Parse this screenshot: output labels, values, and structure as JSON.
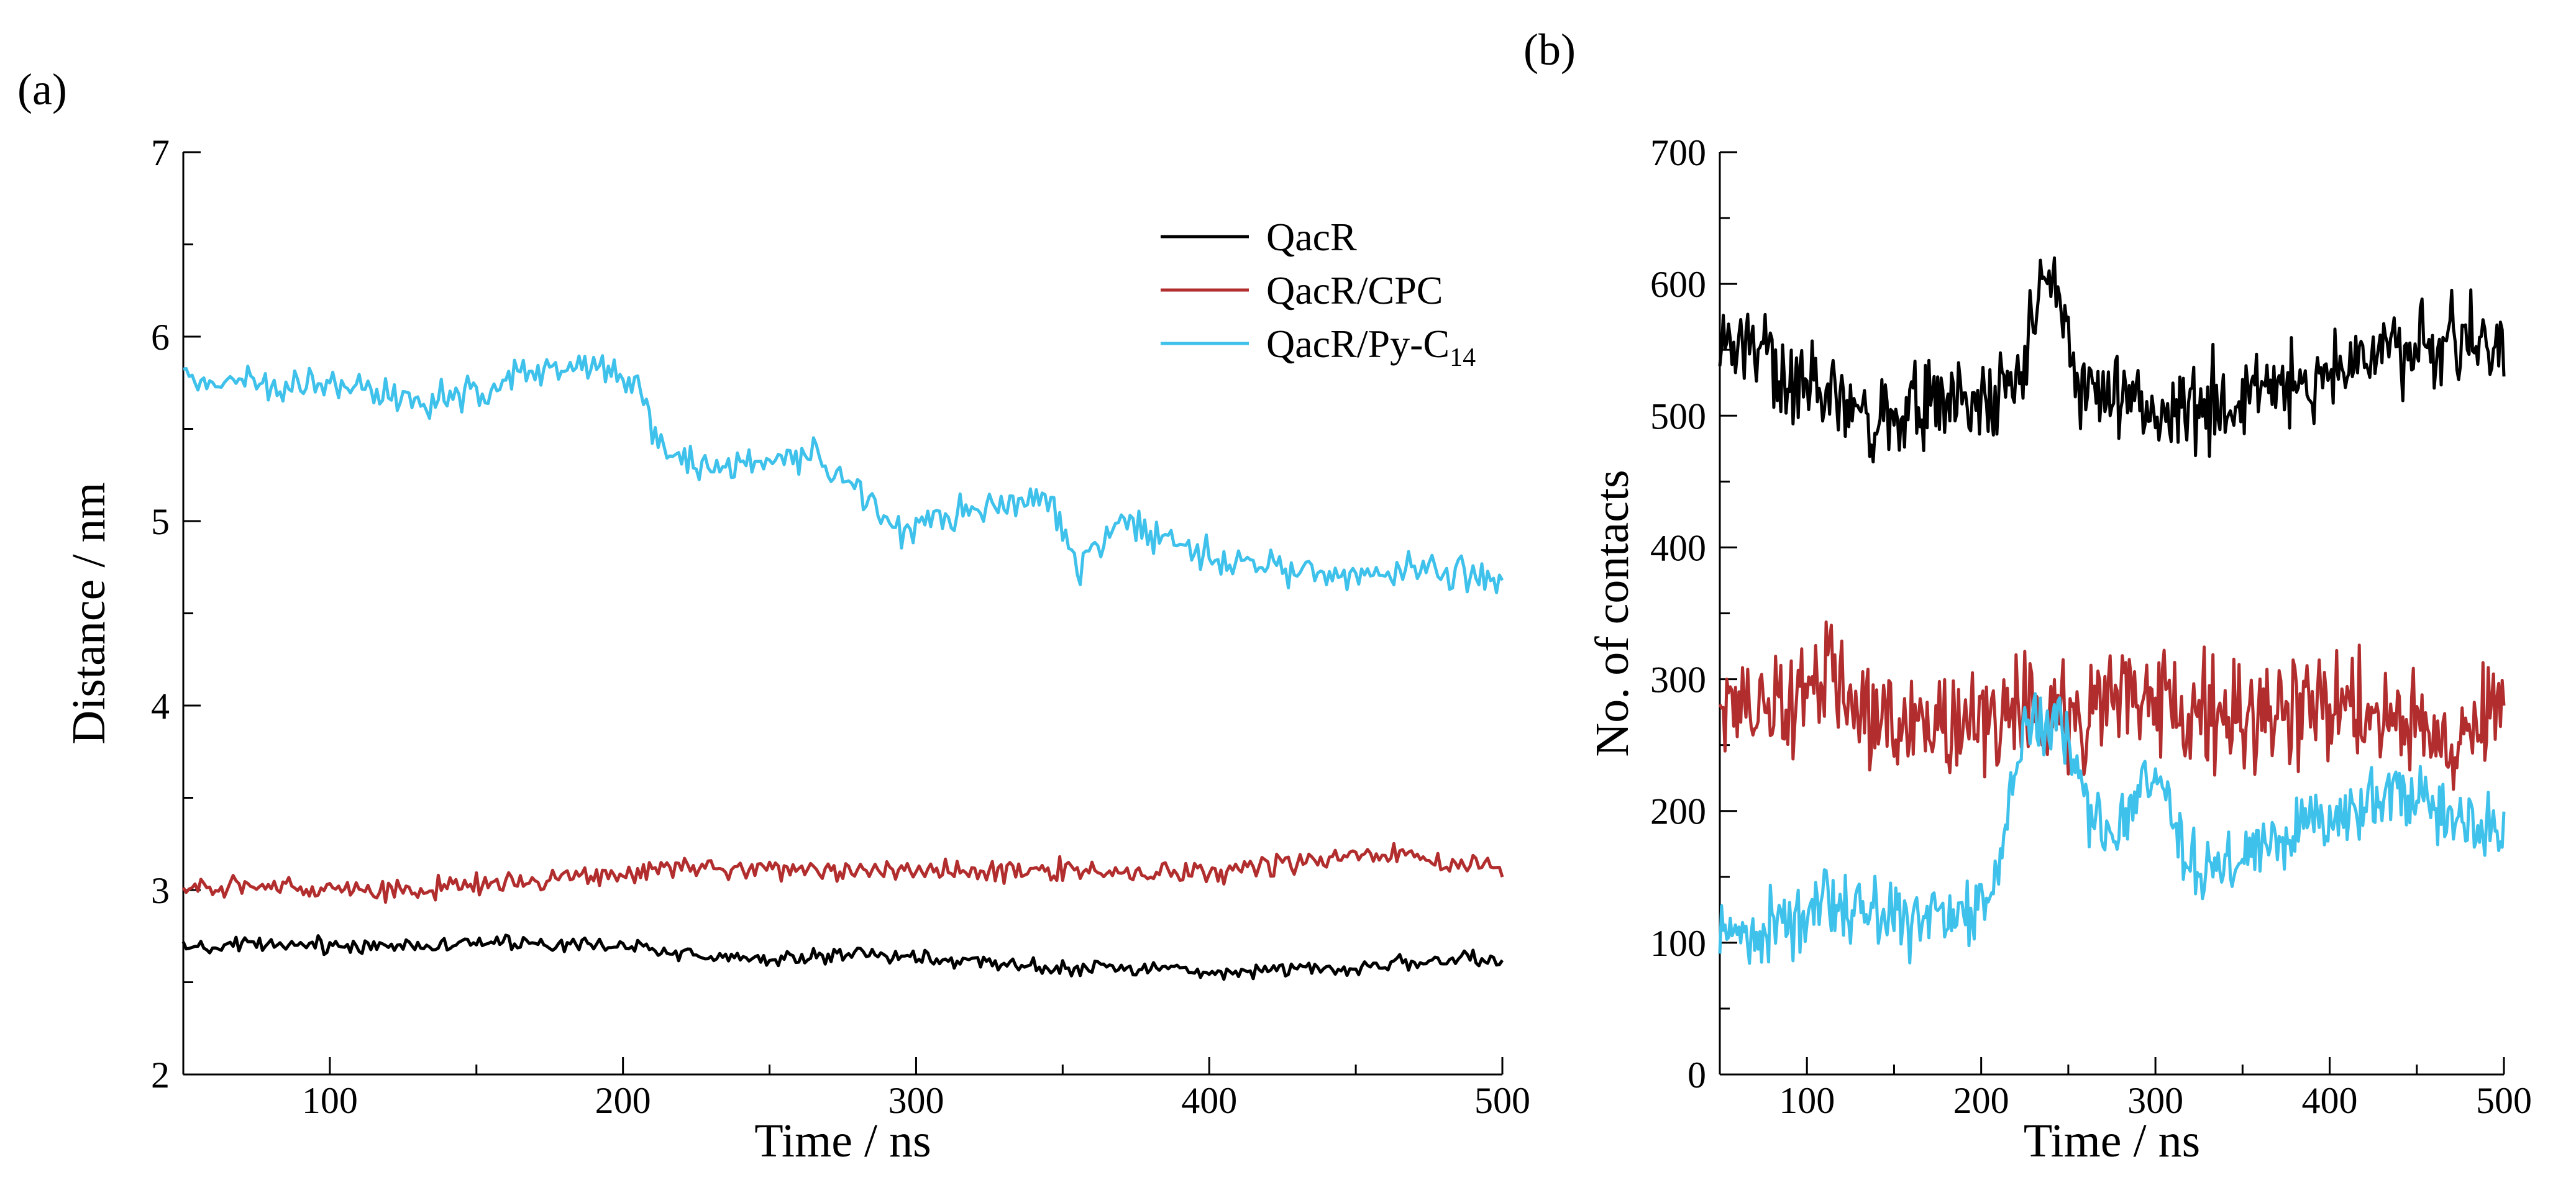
{
  "figure": {
    "panel_a_label": "(a)",
    "panel_b_label": "(b)"
  },
  "chart_data": [
    {
      "type": "line",
      "panel": "(a)",
      "title": "",
      "xlabel": "Time / ns",
      "ylabel": "Distance / nm",
      "xlim": [
        50,
        500
      ],
      "ylim": [
        2,
        7
      ],
      "xticks": [
        100,
        200,
        300,
        400,
        500
      ],
      "yticks": [
        2,
        3,
        4,
        5,
        6,
        7
      ],
      "legend": {
        "position": "top-right",
        "entries": [
          {
            "name": "QacR",
            "color": "#000000"
          },
          {
            "name": "QacR/CPC",
            "color": "#b22d2d"
          },
          {
            "name": "QacR/Py-C",
            "subscript": "14",
            "color": "#3ec1ea"
          }
        ]
      },
      "series": [
        {
          "name": "QacR",
          "color": "#000000",
          "noise": 0.035,
          "x": [
            50,
            75,
            100,
            125,
            150,
            175,
            200,
            225,
            250,
            275,
            300,
            325,
            350,
            375,
            400,
            425,
            450,
            475,
            500
          ],
          "values": [
            2.68,
            2.7,
            2.7,
            2.7,
            2.72,
            2.7,
            2.7,
            2.65,
            2.62,
            2.66,
            2.63,
            2.6,
            2.58,
            2.58,
            2.56,
            2.57,
            2.58,
            2.62,
            2.62
          ]
        },
        {
          "name": "QacR/CPC",
          "color": "#b22d2d",
          "noise": 0.05,
          "x": [
            50,
            75,
            100,
            125,
            150,
            175,
            200,
            225,
            250,
            275,
            300,
            325,
            350,
            375,
            400,
            425,
            450,
            475,
            500
          ],
          "values": [
            3.0,
            3.02,
            3.02,
            2.98,
            3.04,
            3.06,
            3.1,
            3.12,
            3.12,
            3.1,
            3.1,
            3.1,
            3.1,
            3.1,
            3.1,
            3.14,
            3.18,
            3.18,
            3.1
          ]
        },
        {
          "name": "QacR/Py-C14",
          "color": "#3ec1ea",
          "noise": 0.08,
          "x": [
            50,
            70,
            90,
            110,
            130,
            150,
            170,
            190,
            205,
            212,
            225,
            245,
            265,
            285,
            295,
            315,
            330,
            345,
            355,
            370,
            385,
            400,
            420,
            445,
            470,
            500
          ],
          "values": [
            5.78,
            5.74,
            5.75,
            5.72,
            5.62,
            5.7,
            5.8,
            5.86,
            5.74,
            5.4,
            5.32,
            5.3,
            5.38,
            5.1,
            4.95,
            5.05,
            5.1,
            5.15,
            4.75,
            5.0,
            4.9,
            4.8,
            4.75,
            4.7,
            4.75,
            4.68
          ]
        }
      ]
    },
    {
      "type": "line",
      "panel": "(b)",
      "title": "",
      "xlabel": "Time / ns",
      "ylabel": "No. of contacts",
      "xlim": [
        50,
        500
      ],
      "ylim": [
        0,
        700
      ],
      "xticks": [
        100,
        200,
        300,
        400,
        500
      ],
      "yticks": [
        0,
        100,
        200,
        300,
        400,
        500,
        600,
        700
      ],
      "series": [
        {
          "name": "QacR",
          "color": "#000000",
          "noise": 28,
          "x": [
            50,
            70,
            90,
            110,
            130,
            150,
            170,
            190,
            210,
            225,
            235,
            245,
            255,
            275,
            295,
            315,
            335,
            355,
            375,
            395,
            415,
            440,
            460,
            480,
            500
          ],
          "values": [
            545,
            550,
            535,
            525,
            495,
            495,
            510,
            510,
            510,
            530,
            600,
            595,
            530,
            520,
            500,
            505,
            510,
            510,
            520,
            530,
            540,
            555,
            555,
            560,
            550
          ]
        },
        {
          "name": "QacR/CPC",
          "color": "#b22d2d",
          "noise": 35,
          "x": [
            50,
            75,
            100,
            115,
            130,
            150,
            175,
            200,
            225,
            250,
            275,
            300,
            325,
            350,
            375,
            400,
            425,
            450,
            470,
            490,
            500
          ],
          "values": [
            280,
            275,
            295,
            310,
            275,
            270,
            265,
            265,
            280,
            270,
            285,
            280,
            275,
            270,
            280,
            275,
            275,
            265,
            240,
            270,
            285
          ]
        },
        {
          "name": "QacR/Py-C14",
          "color": "#3ec1ea",
          "noise": 22,
          "x": [
            50,
            70,
            90,
            110,
            130,
            150,
            170,
            190,
            205,
            212,
            225,
            245,
            260,
            275,
            290,
            305,
            320,
            340,
            360,
            380,
            400,
            420,
            440,
            460,
            480,
            500
          ],
          "values": [
            110,
            105,
            115,
            130,
            130,
            118,
            118,
            120,
            125,
            180,
            270,
            265,
            200,
            175,
            220,
            215,
            160,
            150,
            175,
            185,
            195,
            200,
            215,
            200,
            185,
            190
          ]
        }
      ]
    }
  ]
}
